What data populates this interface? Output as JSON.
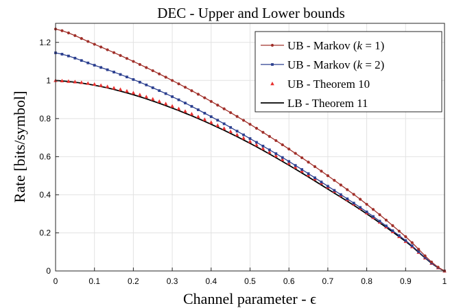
{
  "chart_data": {
    "type": "line",
    "title": "DEC - Upper and Lower bounds",
    "xlabel": "Channel parameter - ϵ",
    "ylabel": "Rate [bits/symbol]",
    "xlim": [
      0,
      1
    ],
    "ylim": [
      0,
      1.3
    ],
    "xticks": [
      "0",
      "0.1",
      "0.2",
      "0.3",
      "0.4",
      "0.5",
      "0.6",
      "0.7",
      "0.8",
      "0.9",
      "1"
    ],
    "yticks": [
      "0",
      "0.2",
      "0.4",
      "0.6",
      "0.8",
      "1",
      "1.2"
    ],
    "grid": true,
    "legend_position": "top-right",
    "x": [
      0,
      0.1,
      0.2,
      0.3,
      0.4,
      0.5,
      0.6,
      0.7,
      0.8,
      0.9,
      1.0
    ],
    "series": [
      {
        "name": "UB - Markov (k = 1)",
        "legend_parts": [
          "UB - Markov (",
          "k",
          " = 1)"
        ],
        "color": "#a0302a",
        "marker": "circle",
        "values": [
          1.27,
          1.19,
          1.1,
          1.0,
          0.89,
          0.77,
          0.64,
          0.5,
          0.35,
          0.18,
          0.0
        ]
      },
      {
        "name": "UB - Markov (k = 2)",
        "legend_parts": [
          "UB - Markov (",
          "k",
          " = 2)"
        ],
        "color": "#2b3f8f",
        "marker": "square",
        "values": [
          1.145,
          1.08,
          1.005,
          0.915,
          0.81,
          0.695,
          0.575,
          0.445,
          0.31,
          0.16,
          0.0
        ]
      },
      {
        "name": "UB - Theorem 10",
        "legend_parts": [
          "UB - Theorem 10"
        ],
        "color": "#e8302f",
        "marker": "triangle",
        "values": [
          1.0,
          0.98,
          0.935,
          0.865,
          0.78,
          0.68,
          0.565,
          0.44,
          0.305,
          0.155,
          0.0
        ]
      },
      {
        "name": "LB - Theorem 11",
        "legend_parts": [
          "LB - Theorem 11"
        ],
        "color": "#000000",
        "marker": "none",
        "values": [
          1.0,
          0.975,
          0.925,
          0.855,
          0.77,
          0.67,
          0.555,
          0.43,
          0.3,
          0.155,
          0.0
        ]
      }
    ]
  }
}
